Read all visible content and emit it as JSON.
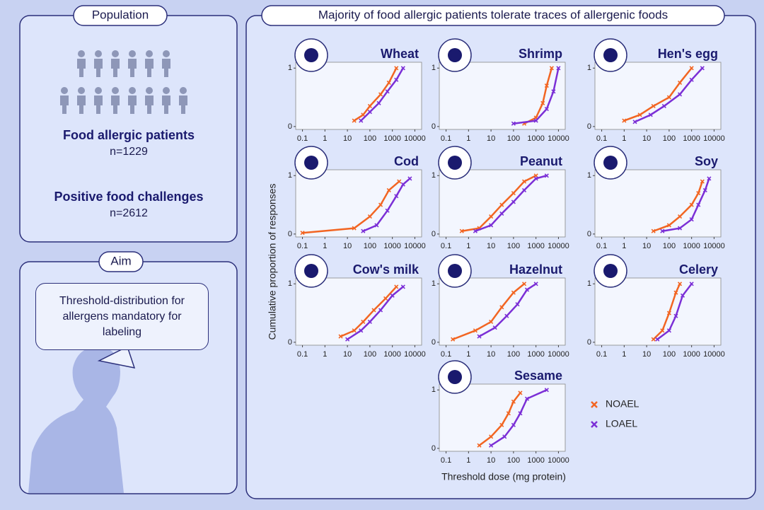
{
  "population": {
    "title": "Population",
    "patients_label": "Food allergic patients",
    "patients_n": "n=1229",
    "challenges_label": "Positive food challenges",
    "challenges_n": "n=2612"
  },
  "aim": {
    "title": "Aim",
    "text": "Threshold-distribution for allergens mandatory for labeling"
  },
  "figure": {
    "title": "Majority of food allergic patients tolerate traces of allergenic foods",
    "y_label": "Cumulative proportion of responses",
    "x_label": "Threshold dose (mg protein)"
  },
  "chart_data": [
    {
      "type": "step",
      "title": "Wheat",
      "log_x": true,
      "xlim": [
        0.05,
        20000
      ],
      "xticks": [
        0.1,
        1,
        10,
        100,
        1000,
        10000
      ],
      "ylim": [
        -0.05,
        1.1
      ],
      "yticks": [
        0,
        1
      ],
      "series": [
        {
          "name": "NOAEL",
          "color": "#f26522",
          "x": [
            20,
            50,
            100,
            300,
            700,
            1500
          ],
          "values": [
            0.1,
            0.2,
            0.35,
            0.55,
            0.75,
            1
          ]
        },
        {
          "name": "LOAEL",
          "color": "#7b2fd6",
          "x": [
            40,
            100,
            250,
            600,
            1500,
            3000
          ],
          "values": [
            0.1,
            0.25,
            0.4,
            0.6,
            0.8,
            1
          ]
        }
      ]
    },
    {
      "type": "step",
      "title": "Shrimp",
      "log_x": true,
      "xlim": [
        0.05,
        20000
      ],
      "xticks": [
        0.1,
        1,
        10,
        100,
        1000,
        10000
      ],
      "ylim": [
        -0.05,
        1.1
      ],
      "yticks": [
        0,
        1
      ],
      "series": [
        {
          "name": "NOAEL",
          "color": "#f26522",
          "x": [
            300,
            1000,
            2000,
            3000,
            5000
          ],
          "values": [
            0.05,
            0.15,
            0.4,
            0.7,
            1
          ]
        },
        {
          "name": "LOAEL",
          "color": "#7b2fd6",
          "x": [
            100,
            1000,
            3000,
            6000,
            10000
          ],
          "values": [
            0.05,
            0.1,
            0.3,
            0.6,
            1
          ]
        }
      ]
    },
    {
      "type": "step",
      "title": "Hen's egg",
      "log_x": true,
      "xlim": [
        0.05,
        20000
      ],
      "xticks": [
        0.1,
        1,
        10,
        100,
        1000,
        10000
      ],
      "ylim": [
        -0.05,
        1.1
      ],
      "yticks": [
        0,
        1
      ],
      "series": [
        {
          "name": "NOAEL",
          "color": "#f26522",
          "x": [
            1,
            5,
            20,
            100,
            300,
            1000
          ],
          "values": [
            0.1,
            0.2,
            0.35,
            0.5,
            0.75,
            1
          ]
        },
        {
          "name": "LOAEL",
          "color": "#7b2fd6",
          "x": [
            3,
            15,
            60,
            300,
            1000,
            3000
          ],
          "values": [
            0.08,
            0.2,
            0.35,
            0.55,
            0.8,
            1
          ]
        }
      ]
    },
    {
      "type": "step",
      "title": "Cod",
      "log_x": true,
      "xlim": [
        0.05,
        20000
      ],
      "xticks": [
        0.1,
        1,
        10,
        100,
        1000,
        10000
      ],
      "ylim": [
        -0.05,
        1.1
      ],
      "yticks": [
        0,
        1
      ],
      "series": [
        {
          "name": "NOAEL",
          "color": "#f26522",
          "x": [
            0.1,
            20,
            100,
            300,
            700,
            2000
          ],
          "values": [
            0.02,
            0.1,
            0.3,
            0.5,
            0.75,
            0.9
          ]
        },
        {
          "name": "LOAEL",
          "color": "#7b2fd6",
          "x": [
            50,
            200,
            600,
            1500,
            3000,
            6000
          ],
          "values": [
            0.05,
            0.15,
            0.4,
            0.65,
            0.85,
            0.95
          ]
        }
      ]
    },
    {
      "type": "step",
      "title": "Peanut",
      "log_x": true,
      "xlim": [
        0.05,
        20000
      ],
      "xticks": [
        0.1,
        1,
        10,
        100,
        1000,
        10000
      ],
      "ylim": [
        -0.05,
        1.1
      ],
      "yticks": [
        0,
        1
      ],
      "series": [
        {
          "name": "NOAEL",
          "color": "#f26522",
          "x": [
            0.5,
            3,
            10,
            30,
            100,
            300,
            1000
          ],
          "values": [
            0.05,
            0.1,
            0.3,
            0.5,
            0.7,
            0.9,
            1
          ]
        },
        {
          "name": "LOAEL",
          "color": "#7b2fd6",
          "x": [
            2,
            10,
            30,
            100,
            300,
            1000,
            3000
          ],
          "values": [
            0.05,
            0.15,
            0.35,
            0.55,
            0.75,
            0.95,
            1
          ]
        }
      ]
    },
    {
      "type": "step",
      "title": "Soy",
      "log_x": true,
      "xlim": [
        0.05,
        20000
      ],
      "xticks": [
        0.1,
        1,
        10,
        100,
        1000,
        10000
      ],
      "ylim": [
        -0.05,
        1.1
      ],
      "yticks": [
        0,
        1
      ],
      "series": [
        {
          "name": "NOAEL",
          "color": "#f26522",
          "x": [
            20,
            100,
            300,
            1000,
            2000,
            3000
          ],
          "values": [
            0.05,
            0.15,
            0.3,
            0.5,
            0.7,
            0.9
          ]
        },
        {
          "name": "LOAEL",
          "color": "#7b2fd6",
          "x": [
            50,
            300,
            1000,
            2000,
            4000,
            6000
          ],
          "values": [
            0.05,
            0.1,
            0.25,
            0.5,
            0.75,
            0.95
          ]
        }
      ]
    },
    {
      "type": "step",
      "title": "Cow's milk",
      "log_x": true,
      "xlim": [
        0.05,
        20000
      ],
      "xticks": [
        0.1,
        1,
        10,
        100,
        1000,
        10000
      ],
      "ylim": [
        -0.05,
        1.1
      ],
      "yticks": [
        0,
        1
      ],
      "series": [
        {
          "name": "NOAEL",
          "color": "#f26522",
          "x": [
            5,
            20,
            50,
            150,
            500,
            1500
          ],
          "values": [
            0.1,
            0.2,
            0.35,
            0.55,
            0.75,
            0.95
          ]
        },
        {
          "name": "LOAEL",
          "color": "#7b2fd6",
          "x": [
            10,
            40,
            100,
            300,
            1000,
            3000
          ],
          "values": [
            0.05,
            0.2,
            0.35,
            0.55,
            0.8,
            0.95
          ]
        }
      ]
    },
    {
      "type": "step",
      "title": "Hazelnut",
      "log_x": true,
      "xlim": [
        0.05,
        20000
      ],
      "xticks": [
        0.1,
        1,
        10,
        100,
        1000,
        10000
      ],
      "ylim": [
        -0.05,
        1.1
      ],
      "yticks": [
        0,
        1
      ],
      "series": [
        {
          "name": "NOAEL",
          "color": "#f26522",
          "x": [
            0.2,
            2,
            10,
            30,
            100,
            300
          ],
          "values": [
            0.05,
            0.2,
            0.35,
            0.6,
            0.85,
            1
          ]
        },
        {
          "name": "LOAEL",
          "color": "#7b2fd6",
          "x": [
            3,
            15,
            50,
            150,
            400,
            1000
          ],
          "values": [
            0.1,
            0.25,
            0.45,
            0.65,
            0.9,
            1
          ]
        }
      ]
    },
    {
      "type": "step",
      "title": "Celery",
      "log_x": true,
      "xlim": [
        0.05,
        20000
      ],
      "xticks": [
        0.1,
        1,
        10,
        100,
        1000,
        10000
      ],
      "ylim": [
        -0.05,
        1.1
      ],
      "yticks": [
        0,
        1
      ],
      "series": [
        {
          "name": "NOAEL",
          "color": "#f26522",
          "x": [
            20,
            50,
            100,
            200,
            300
          ],
          "values": [
            0.05,
            0.2,
            0.5,
            0.85,
            1
          ]
        },
        {
          "name": "LOAEL",
          "color": "#7b2fd6",
          "x": [
            30,
            100,
            200,
            400,
            1000
          ],
          "values": [
            0.05,
            0.2,
            0.45,
            0.8,
            1
          ]
        }
      ]
    },
    {
      "type": "step",
      "title": "Sesame",
      "log_x": true,
      "xlim": [
        0.05,
        20000
      ],
      "xticks": [
        0.1,
        1,
        10,
        100,
        1000,
        10000
      ],
      "ylim": [
        -0.05,
        1.1
      ],
      "yticks": [
        0,
        1
      ],
      "series": [
        {
          "name": "NOAEL",
          "color": "#f26522",
          "x": [
            3,
            10,
            30,
            60,
            100,
            200
          ],
          "values": [
            0.05,
            0.2,
            0.4,
            0.6,
            0.8,
            0.95
          ]
        },
        {
          "name": "LOAEL",
          "color": "#7b2fd6",
          "x": [
            10,
            40,
            100,
            200,
            400,
            3000
          ],
          "values": [
            0.05,
            0.2,
            0.4,
            0.6,
            0.85,
            1
          ]
        }
      ]
    }
  ]
}
